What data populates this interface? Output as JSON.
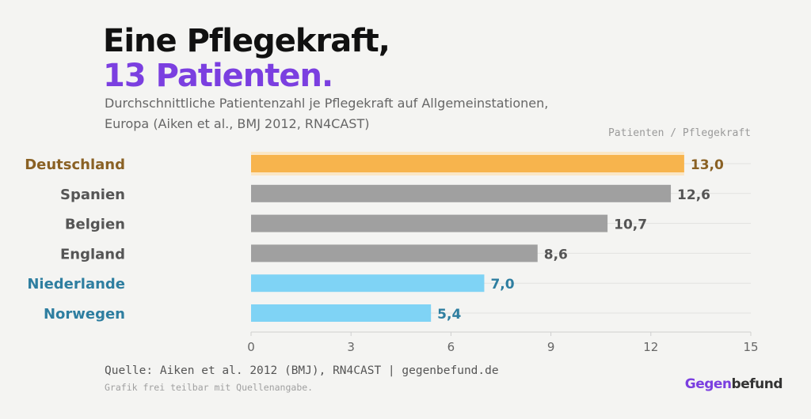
{
  "header": {
    "title_line1": "Eine Pflegekraft,",
    "title_line2": "13 Patienten.",
    "subtitle": "Durchschnittliche Patientenzahl je Pflegekraft auf Allgemeinstationen, Europa (Aiken et al., BMJ 2012, RN4CAST)",
    "unit_label": "Patienten / Pflegekraft"
  },
  "chart_data": {
    "type": "bar",
    "orientation": "horizontal",
    "categories": [
      "Deutschland",
      "Spanien",
      "Belgien",
      "England",
      "Niederlande",
      "Norwegen"
    ],
    "values": [
      13.0,
      12.6,
      10.7,
      8.6,
      7.0,
      5.4
    ],
    "value_labels": [
      "13,0",
      "12,6",
      "10,7",
      "8,6",
      "7,0",
      "5,4"
    ],
    "xlim": [
      0,
      15
    ],
    "xticks": [
      0,
      3,
      6,
      9,
      12,
      15
    ],
    "grid": true,
    "styles": {
      "highlight": {
        "bar": "#f7b44d",
        "label": "#8a6124",
        "band": "#fbe7c6"
      },
      "neutral": {
        "bar": "#a0a0a0",
        "label": "#555555"
      },
      "good": {
        "bar": "#7fd3f5",
        "label": "#2e7ea0"
      }
    },
    "category_style": [
      "highlight",
      "neutral",
      "neutral",
      "neutral",
      "good",
      "good"
    ]
  },
  "footer": {
    "source": "Quelle: Aiken et al. 2012 (BMJ), RN4CAST | gegenbefund.de",
    "note": "Grafik frei teilbar mit Quellenangabe.",
    "brand_part1": "Gegen",
    "brand_part2": "befund"
  },
  "colors": {
    "background": "#f4f4f2",
    "accent": "#7b3fe0",
    "text": "#111111"
  }
}
